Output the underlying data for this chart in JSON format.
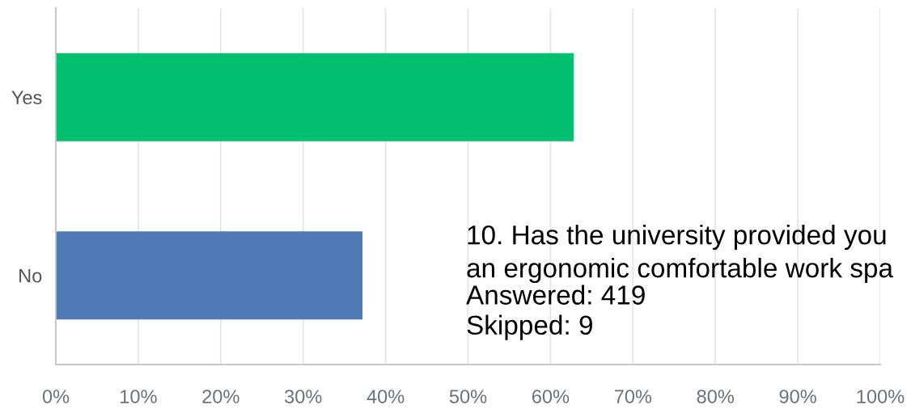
{
  "chart_data": {
    "type": "bar",
    "orientation": "horizontal",
    "categories": [
      "Yes",
      "No"
    ],
    "values": [
      62.8,
      37.2
    ],
    "colors": [
      "#00bf6f",
      "#4e7ab5"
    ],
    "xlim": [
      0,
      100
    ],
    "xticks": [
      {
        "value": 0,
        "label": "0%"
      },
      {
        "value": 10,
        "label": "10%"
      },
      {
        "value": 20,
        "label": "20%"
      },
      {
        "value": 30,
        "label": "30%"
      },
      {
        "value": 40,
        "label": "40%"
      },
      {
        "value": 50,
        "label": "50%"
      },
      {
        "value": 60,
        "label": "60%"
      },
      {
        "value": 70,
        "label": "70%"
      },
      {
        "value": 80,
        "label": "80%"
      },
      {
        "value": 90,
        "label": "90%"
      },
      {
        "value": 100,
        "label": "100%"
      }
    ],
    "grid": "x",
    "annotations": [
      "10. Has the university provided you\nan ergonomic comfortable work spa",
      "Answered: 419",
      "Skipped: 9"
    ]
  }
}
